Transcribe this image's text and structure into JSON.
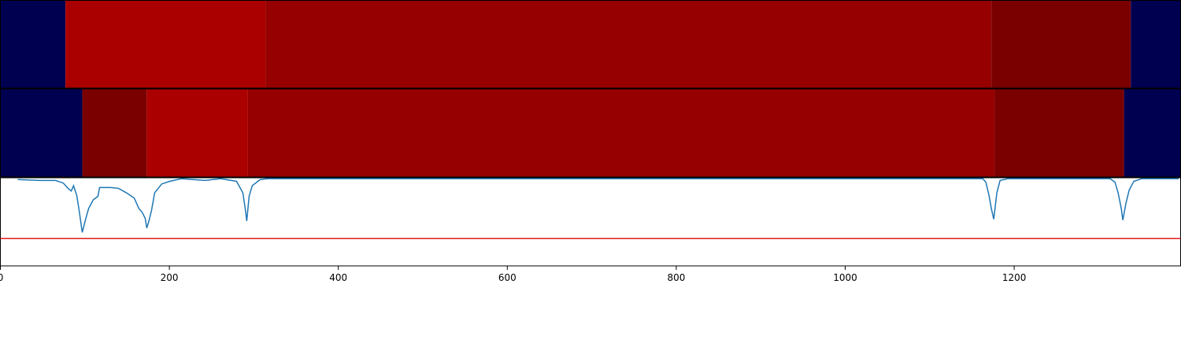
{
  "chart_data": {
    "type": "segmentation",
    "xlim": [
      0,
      1397
    ],
    "xticks": [
      0,
      200,
      400,
      600,
      800,
      1000,
      1200
    ],
    "strips": [
      {
        "segments": [
          {
            "start": 0,
            "end": 77,
            "color": "#000050"
          },
          {
            "start": 77,
            "end": 314,
            "color": "#aa0000"
          },
          {
            "start": 314,
            "end": 1173,
            "color": "#960000"
          },
          {
            "start": 1173,
            "end": 1338,
            "color": "#7a0000"
          },
          {
            "start": 1338,
            "end": 1397,
            "color": "#000050"
          }
        ]
      },
      {
        "segments": [
          {
            "start": 0,
            "end": 97,
            "color": "#000050"
          },
          {
            "start": 97,
            "end": 173,
            "color": "#7a0000"
          },
          {
            "start": 173,
            "end": 293,
            "color": "#aa0000"
          },
          {
            "start": 293,
            "end": 1177,
            "color": "#960000"
          },
          {
            "start": 1177,
            "end": 1330,
            "color": "#7a0000"
          },
          {
            "start": 1330,
            "end": 1397,
            "color": "#000050"
          }
        ]
      }
    ],
    "ylim": [
      0,
      1
    ],
    "line": {
      "color": "#1f77b4",
      "x": [
        20.5,
        46.6,
        65.2,
        74.5,
        80.1,
        83.9,
        86.6,
        90.4,
        93.2,
        96.9,
        100.6,
        104.4,
        109.9,
        115.5,
        117.4,
        130.4,
        139.8,
        149.1,
        158.4,
        164.0,
        167.7,
        171.4,
        173.3,
        176.1,
        178.9,
        182.6,
        191.0,
        200.3,
        214.3,
        242.2,
        260.9,
        279.5,
        287.0,
        289.8,
        291.6,
        294.4,
        298.1,
        307.5,
        316.8,
        1162.8,
        1166.5,
        1170.2,
        1173.0,
        1175.8,
        1179.5,
        1183.3,
        1192.6,
        1313.7,
        1319.3,
        1323.0,
        1326.8,
        1328.6,
        1332.3,
        1336.1,
        1341.6,
        1351.0,
        1364.9,
        1383.6,
        1394.7
      ],
      "values": [
        0.98,
        0.97,
        0.97,
        0.94,
        0.88,
        0.85,
        0.91,
        0.8,
        0.63,
        0.38,
        0.52,
        0.65,
        0.75,
        0.79,
        0.89,
        0.89,
        0.88,
        0.83,
        0.77,
        0.65,
        0.61,
        0.54,
        0.43,
        0.52,
        0.63,
        0.83,
        0.93,
        0.96,
        0.99,
        0.97,
        0.99,
        0.96,
        0.83,
        0.65,
        0.51,
        0.79,
        0.91,
        0.98,
        0.99,
        0.99,
        0.95,
        0.8,
        0.65,
        0.53,
        0.83,
        0.97,
        0.99,
        0.99,
        0.95,
        0.83,
        0.65,
        0.52,
        0.71,
        0.86,
        0.96,
        0.99,
        0.99,
        0.99,
        0.99
      ]
    },
    "threshold": {
      "value": 0.31,
      "color": "#e31a1c"
    }
  }
}
